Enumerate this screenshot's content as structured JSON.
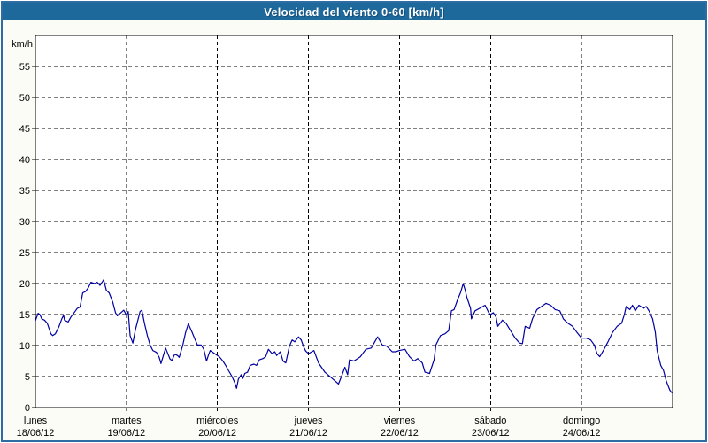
{
  "window": {
    "title": "Velocidad del viento 0-60 [km/h]"
  },
  "colors": {
    "titlebar_bg": "#1e699c",
    "titlebar_text": "#ffffff",
    "frame_border": "#2e6da4",
    "page_bg": "#fcfcf6",
    "plot_bg": "#ffffff",
    "axis": "#000000",
    "grid": "#000000",
    "line": "#0000a0",
    "label_text": "#000000"
  },
  "chart_data": {
    "type": "line",
    "title": "Velocidad del viento 0-60 [km/h]",
    "ylabel": "km/h",
    "xlabel": "",
    "ylim": [
      0,
      60
    ],
    "ytick_step": 5,
    "ytick_labels": [
      "0",
      "5",
      "10",
      "15",
      "20",
      "25",
      "30",
      "35",
      "40",
      "45",
      "50",
      "55"
    ],
    "grid": "dashed",
    "legend_position": "none",
    "x_days": [
      {
        "name": "lunes",
        "date": "18/06/12"
      },
      {
        "name": "martes",
        "date": "19/06/12"
      },
      {
        "name": "miércoles",
        "date": "20/06/12"
      },
      {
        "name": "jueves",
        "date": "21/06/12"
      },
      {
        "name": "viernes",
        "date": "22/06/12"
      },
      {
        "name": "sábado",
        "date": "23/06/12"
      },
      {
        "name": "domingo",
        "date": "24/06/12"
      }
    ],
    "series": [
      {
        "name": "velocidad_viento_kmh",
        "color": "#0000a0",
        "points": [
          [
            0.0,
            14.0
          ],
          [
            0.03,
            15.2
          ],
          [
            0.05,
            15.0
          ],
          [
            0.07,
            14.3
          ],
          [
            0.1,
            14.1
          ],
          [
            0.13,
            13.6
          ],
          [
            0.17,
            11.9
          ],
          [
            0.19,
            11.6
          ],
          [
            0.22,
            11.9
          ],
          [
            0.26,
            13.1
          ],
          [
            0.29,
            14.3
          ],
          [
            0.31,
            14.9
          ],
          [
            0.32,
            14.1
          ],
          [
            0.36,
            13.8
          ],
          [
            0.39,
            14.6
          ],
          [
            0.44,
            15.6
          ],
          [
            0.46,
            16.0
          ],
          [
            0.49,
            16.2
          ],
          [
            0.52,
            18.5
          ],
          [
            0.55,
            18.7
          ],
          [
            0.58,
            19.3
          ],
          [
            0.61,
            20.2
          ],
          [
            0.65,
            20.0
          ],
          [
            0.68,
            20.2
          ],
          [
            0.71,
            19.7
          ],
          [
            0.75,
            20.6
          ],
          [
            0.78,
            18.9
          ],
          [
            0.81,
            18.5
          ],
          [
            0.85,
            17.0
          ],
          [
            0.88,
            15.3
          ],
          [
            0.9,
            14.8
          ],
          [
            0.94,
            15.3
          ],
          [
            0.97,
            15.7
          ],
          [
            1.0,
            14.9
          ],
          [
            1.02,
            15.5
          ],
          [
            1.04,
            11.6
          ],
          [
            1.07,
            10.4
          ],
          [
            1.1,
            12.6
          ],
          [
            1.15,
            15.5
          ],
          [
            1.17,
            15.7
          ],
          [
            1.2,
            13.5
          ],
          [
            1.23,
            11.6
          ],
          [
            1.26,
            10.1
          ],
          [
            1.29,
            9.2
          ],
          [
            1.33,
            8.9
          ],
          [
            1.36,
            8.1
          ],
          [
            1.38,
            7.1
          ],
          [
            1.4,
            8.1
          ],
          [
            1.43,
            9.6
          ],
          [
            1.48,
            7.8
          ],
          [
            1.5,
            7.6
          ],
          [
            1.53,
            8.6
          ],
          [
            1.56,
            8.4
          ],
          [
            1.58,
            8.1
          ],
          [
            1.62,
            10.1
          ],
          [
            1.65,
            12.1
          ],
          [
            1.68,
            13.5
          ],
          [
            1.72,
            12.2
          ],
          [
            1.75,
            11.1
          ],
          [
            1.78,
            10.1
          ],
          [
            1.82,
            10.1
          ],
          [
            1.85,
            9.4
          ],
          [
            1.88,
            7.5
          ],
          [
            1.9,
            8.4
          ],
          [
            1.92,
            9.2
          ],
          [
            1.94,
            9.0
          ],
          [
            1.97,
            8.7
          ],
          [
            2.0,
            8.4
          ],
          [
            2.02,
            8.2
          ],
          [
            2.06,
            7.5
          ],
          [
            2.09,
            6.8
          ],
          [
            2.12,
            6.0
          ],
          [
            2.16,
            5.0
          ],
          [
            2.19,
            4.0
          ],
          [
            2.21,
            3.1
          ],
          [
            2.23,
            4.6
          ],
          [
            2.26,
            5.3
          ],
          [
            2.28,
            4.7
          ],
          [
            2.3,
            5.5
          ],
          [
            2.33,
            5.7
          ],
          [
            2.36,
            6.8
          ],
          [
            2.4,
            7.0
          ],
          [
            2.43,
            6.8
          ],
          [
            2.46,
            7.7
          ],
          [
            2.5,
            7.9
          ],
          [
            2.53,
            8.2
          ],
          [
            2.56,
            9.4
          ],
          [
            2.6,
            8.7
          ],
          [
            2.63,
            9.0
          ],
          [
            2.65,
            8.4
          ],
          [
            2.69,
            9.0
          ],
          [
            2.72,
            7.5
          ],
          [
            2.75,
            7.2
          ],
          [
            2.79,
            9.9
          ],
          [
            2.82,
            10.9
          ],
          [
            2.85,
            10.6
          ],
          [
            2.89,
            11.4
          ],
          [
            2.92,
            10.9
          ],
          [
            2.95,
            9.7
          ],
          [
            2.97,
            9.1
          ],
          [
            3.0,
            8.7
          ],
          [
            3.06,
            9.2
          ],
          [
            3.11,
            7.2
          ],
          [
            3.18,
            5.7
          ],
          [
            3.26,
            4.7
          ],
          [
            3.33,
            3.8
          ],
          [
            3.37,
            5.3
          ],
          [
            3.4,
            6.5
          ],
          [
            3.43,
            5.3
          ],
          [
            3.45,
            7.7
          ],
          [
            3.5,
            7.5
          ],
          [
            3.57,
            8.2
          ],
          [
            3.63,
            9.4
          ],
          [
            3.69,
            9.6
          ],
          [
            3.76,
            11.4
          ],
          [
            3.81,
            10.1
          ],
          [
            3.86,
            9.9
          ],
          [
            3.92,
            9.0
          ],
          [
            3.96,
            9.0
          ],
          [
            4.0,
            9.2
          ],
          [
            4.06,
            9.4
          ],
          [
            4.11,
            8.2
          ],
          [
            4.16,
            7.5
          ],
          [
            4.2,
            7.9
          ],
          [
            4.25,
            7.2
          ],
          [
            4.28,
            5.7
          ],
          [
            4.33,
            5.5
          ],
          [
            4.38,
            7.7
          ],
          [
            4.4,
            10.1
          ],
          [
            4.45,
            11.6
          ],
          [
            4.5,
            11.9
          ],
          [
            4.54,
            12.4
          ],
          [
            4.57,
            15.6
          ],
          [
            4.6,
            15.8
          ],
          [
            4.64,
            17.5
          ],
          [
            4.67,
            18.5
          ],
          [
            4.7,
            20.0
          ],
          [
            4.72,
            19.0
          ],
          [
            4.74,
            17.8
          ],
          [
            4.78,
            16.0
          ],
          [
            4.79,
            14.3
          ],
          [
            4.83,
            15.6
          ],
          [
            4.88,
            16.0
          ],
          [
            4.94,
            16.5
          ],
          [
            4.98,
            15.3
          ],
          [
            5.0,
            15.0
          ],
          [
            5.03,
            15.3
          ],
          [
            5.06,
            14.6
          ],
          [
            5.08,
            13.1
          ],
          [
            5.13,
            14.1
          ],
          [
            5.17,
            13.6
          ],
          [
            5.22,
            12.4
          ],
          [
            5.27,
            11.2
          ],
          [
            5.32,
            10.4
          ],
          [
            5.35,
            10.3
          ],
          [
            5.38,
            13.1
          ],
          [
            5.43,
            12.8
          ],
          [
            5.46,
            14.3
          ],
          [
            5.51,
            15.8
          ],
          [
            5.56,
            16.3
          ],
          [
            5.61,
            16.8
          ],
          [
            5.66,
            16.5
          ],
          [
            5.71,
            15.8
          ],
          [
            5.76,
            15.6
          ],
          [
            5.8,
            14.3
          ],
          [
            5.85,
            13.6
          ],
          [
            5.9,
            13.1
          ],
          [
            5.95,
            12.1
          ],
          [
            6.0,
            11.2
          ],
          [
            6.05,
            11.2
          ],
          [
            6.1,
            10.9
          ],
          [
            6.14,
            10.1
          ],
          [
            6.17,
            8.7
          ],
          [
            6.2,
            8.2
          ],
          [
            6.24,
            9.2
          ],
          [
            6.29,
            10.6
          ],
          [
            6.34,
            12.1
          ],
          [
            6.39,
            13.1
          ],
          [
            6.44,
            13.6
          ],
          [
            6.47,
            15.0
          ],
          [
            6.49,
            16.3
          ],
          [
            6.53,
            15.8
          ],
          [
            6.56,
            16.5
          ],
          [
            6.59,
            15.6
          ],
          [
            6.63,
            16.5
          ],
          [
            6.68,
            16.0
          ],
          [
            6.71,
            16.3
          ],
          [
            6.74,
            15.6
          ],
          [
            6.78,
            14.3
          ],
          [
            6.81,
            12.1
          ],
          [
            6.83,
            9.2
          ],
          [
            6.87,
            6.8
          ],
          [
            6.9,
            6.0
          ],
          [
            6.93,
            4.3
          ],
          [
            6.97,
            2.8
          ],
          [
            6.99,
            2.4
          ]
        ]
      }
    ]
  }
}
